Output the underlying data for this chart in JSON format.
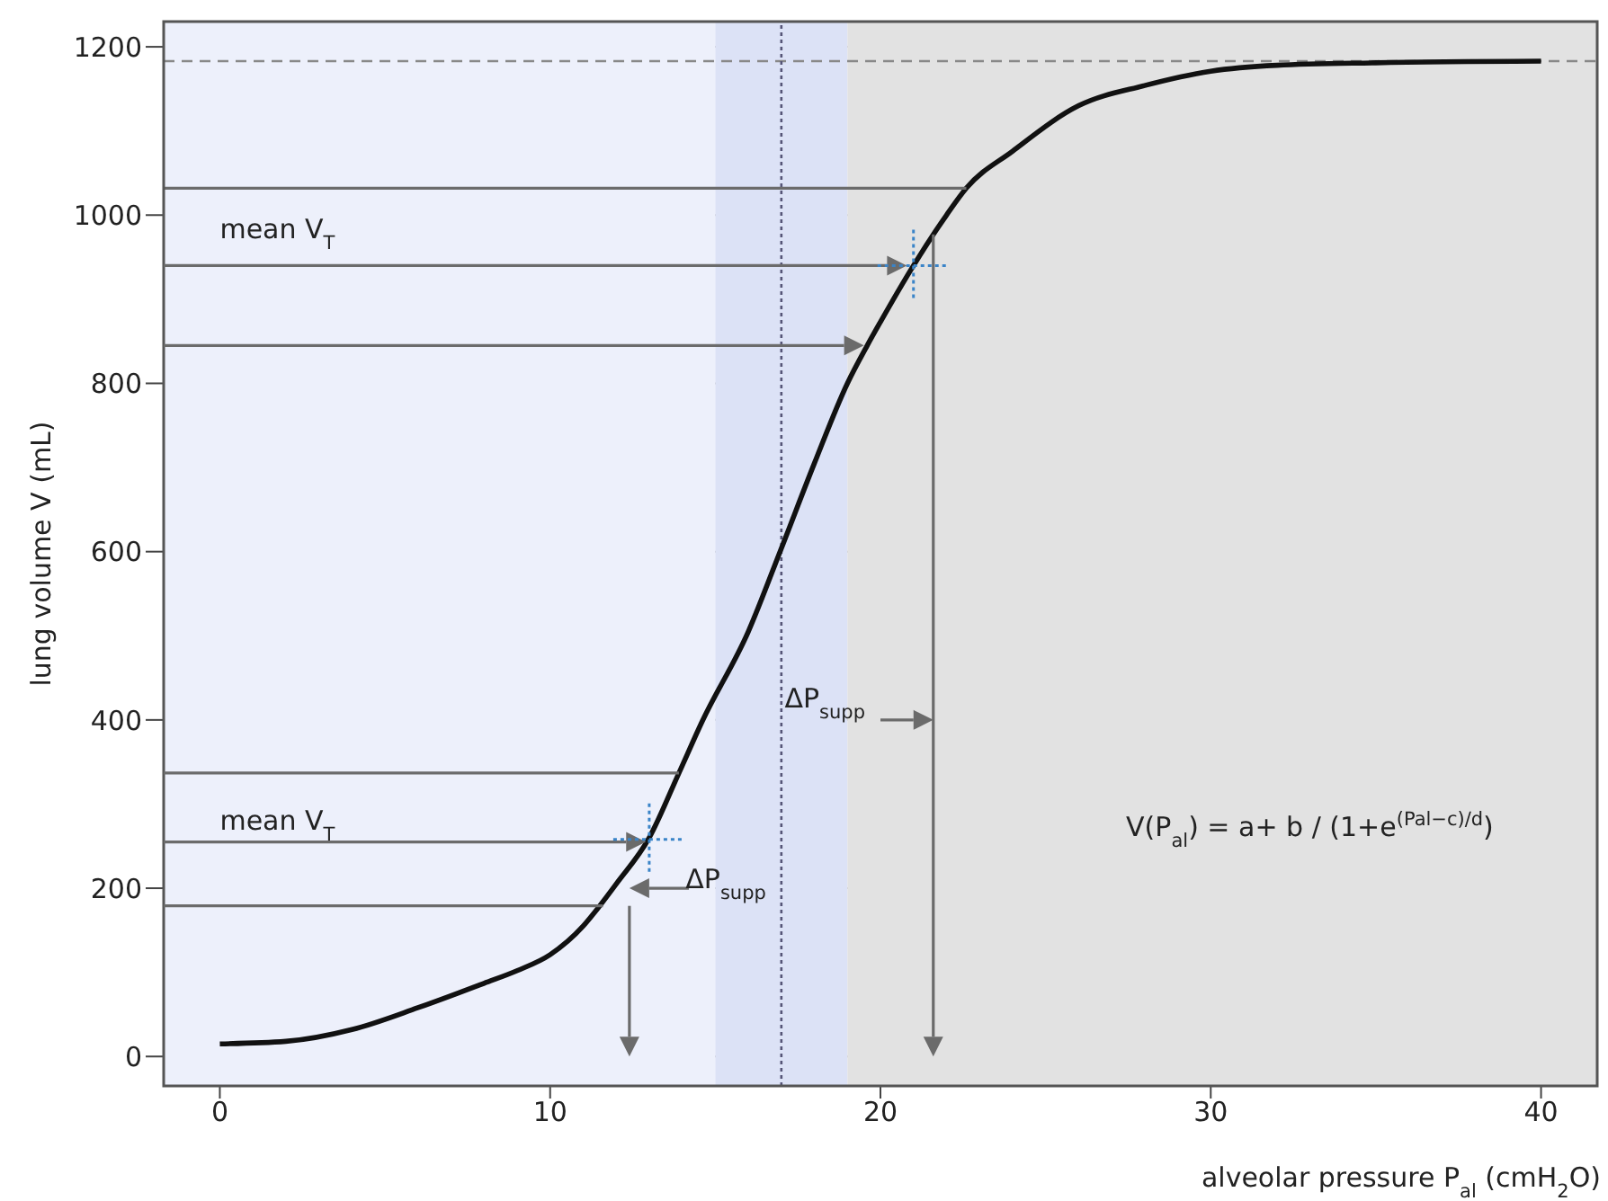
{
  "chart_data": {
    "type": "line",
    "xlabel": "alveolar pressure P$_{al}$ (cmH$_{2}$O)",
    "ylabel": "lung volume V (mL)",
    "x": [
      0,
      2,
      4,
      6,
      8,
      9,
      10,
      11,
      11.5,
      12,
      13,
      13.9,
      14.6,
      16,
      17,
      18,
      19,
      19.6,
      20,
      21,
      22,
      22.6,
      24,
      26,
      28,
      30,
      32,
      35,
      40
    ],
    "series": [
      {
        "color": "#111111",
        "values": [
          15,
          18,
          32,
          58,
          87,
          102,
          121,
          155,
          179,
          205,
          260,
          337,
          398,
          505,
          604,
          705,
          800,
          845,
          873,
          940,
          1000,
          1032,
          1076,
          1130,
          1154,
          1171,
          1178,
          1181,
          1183
        ]
      },
      {
        "type": "line",
        "color": "#6b6b6b",
        "x": [
          -1.7,
          22.6
        ],
        "values": [
          1032,
          1032
        ]
      }
    ],
    "xlim": [
      -1.7,
      41.7
    ],
    "ylim": [
      -35,
      1230
    ],
    "xticks": [
      0,
      10,
      20,
      30,
      40
    ],
    "yticks": [
      0,
      200,
      400,
      600,
      800,
      1000,
      1200
    ],
    "grid": true,
    "marker": "none",
    "line_style": "solid",
    "bands": [
      {
        "axis": "x",
        "from": -1.7,
        "to": 15,
        "color": "#edf0fb"
      },
      {
        "axis": "x",
        "from": 15,
        "to": 19,
        "color": "#dce2f6"
      },
      {
        "axis": "x",
        "from": 19,
        "to": 41.7,
        "color": "#e2e2e2"
      }
    ],
    "ref_lines": [
      {
        "axis": "y",
        "value": 1183,
        "color": "#888888",
        "line_style": "dashed"
      },
      {
        "axis": "x",
        "value": 17,
        "color": "#555577",
        "line_style": "dotted"
      }
    ],
    "annotations": [
      "mean V$_{T}$",
      "ΔP$_{supp}$",
      "mean V$_{T}$",
      "ΔP$_{supp}$",
      "V(P$_{al}$) = a+ b / (1+e$^{(Pal−c)/d}$)"
    ]
  }
}
